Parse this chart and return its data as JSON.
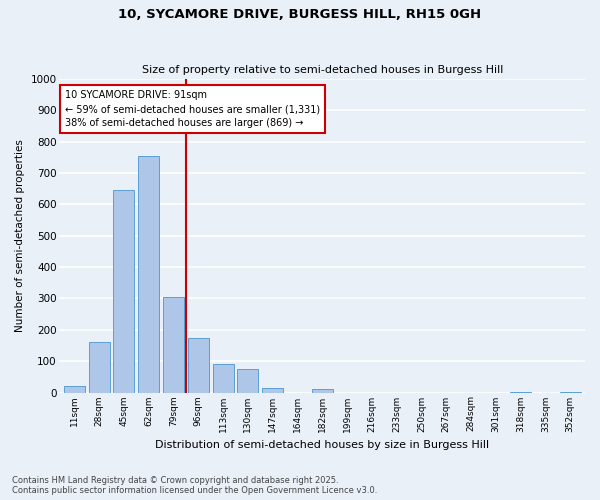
{
  "title1": "10, SYCAMORE DRIVE, BURGESS HILL, RH15 0GH",
  "title2": "Size of property relative to semi-detached houses in Burgess Hill",
  "xlabel": "Distribution of semi-detached houses by size in Burgess Hill",
  "ylabel": "Number of semi-detached properties",
  "footnote": "Contains HM Land Registry data © Crown copyright and database right 2025.\nContains public sector information licensed under the Open Government Licence v3.0.",
  "bins": [
    "11sqm",
    "28sqm",
    "45sqm",
    "62sqm",
    "79sqm",
    "96sqm",
    "113sqm",
    "130sqm",
    "147sqm",
    "164sqm",
    "182sqm",
    "199sqm",
    "216sqm",
    "233sqm",
    "250sqm",
    "267sqm",
    "284sqm",
    "301sqm",
    "318sqm",
    "335sqm",
    "352sqm"
  ],
  "values": [
    20,
    160,
    645,
    755,
    305,
    175,
    90,
    75,
    15,
    0,
    12,
    0,
    0,
    0,
    0,
    0,
    0,
    0,
    3,
    0,
    3
  ],
  "bar_color": "#aec6e8",
  "bar_edge_color": "#5a9fd4",
  "property_line_bin_index": 4,
  "property_sqm": 91,
  "annotation_title": "10 SYCAMORE DRIVE: 91sqm",
  "annotation_line1": "← 59% of semi-detached houses are smaller (1,331)",
  "annotation_line2": "38% of semi-detached houses are larger (869) →",
  "ylim": [
    0,
    1000
  ],
  "yticks": [
    0,
    100,
    200,
    300,
    400,
    500,
    600,
    700,
    800,
    900,
    1000
  ],
  "background_color": "#eaf0f8",
  "grid_color": "#ffffff",
  "annotation_box_color": "#ffffff",
  "annotation_box_edge": "#cc0000",
  "red_line_color": "#cc0000"
}
